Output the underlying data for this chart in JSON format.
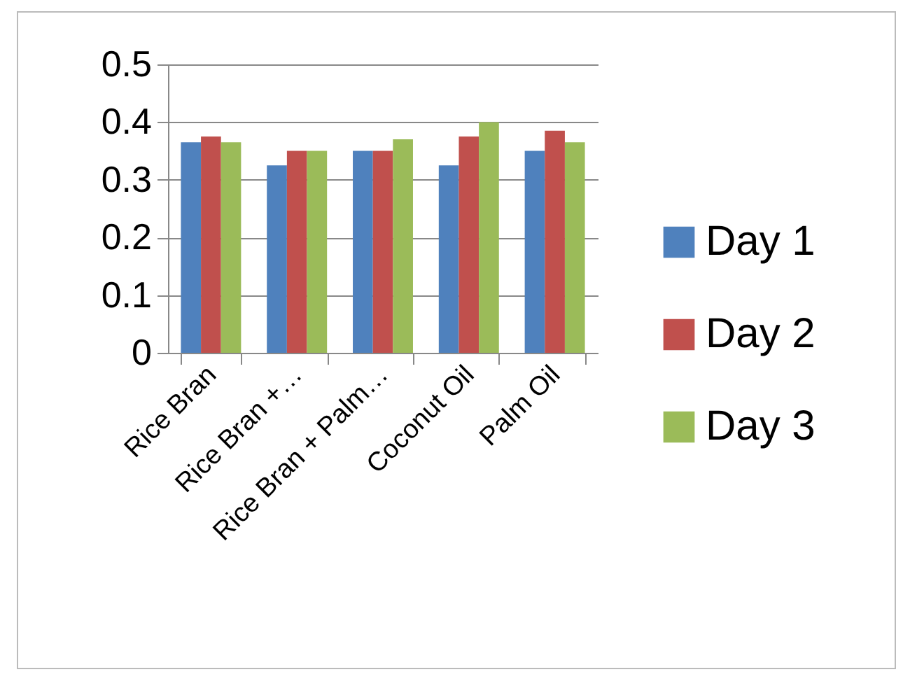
{
  "chart_data": {
    "type": "bar",
    "categories": [
      "Rice Bran",
      "Rice Bran +…",
      "Rice Bran + Palm…",
      "Coconut Oil",
      "Palm Oil"
    ],
    "series": [
      {
        "name": "Day 1",
        "color": "#4f81bd",
        "values": [
          0.365,
          0.325,
          0.35,
          0.325,
          0.35
        ]
      },
      {
        "name": "Day 2",
        "color": "#c0504d",
        "values": [
          0.375,
          0.35,
          0.35,
          0.375,
          0.385
        ]
      },
      {
        "name": "Day 3",
        "color": "#9bbb59",
        "values": [
          0.365,
          0.35,
          0.37,
          0.4,
          0.365
        ]
      }
    ],
    "ylim": [
      0,
      0.5
    ],
    "yticks": [
      0,
      0.1,
      0.2,
      0.3,
      0.4,
      0.5
    ],
    "grid": "y",
    "legend": "right"
  }
}
